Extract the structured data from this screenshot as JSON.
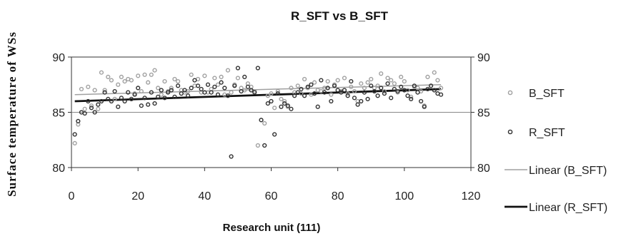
{
  "chart_data": {
    "type": "scatter",
    "title": "R_SFT vs B_SFT",
    "xlabel": "Research unit (111)",
    "ylabel": "Surface temperature of WSs",
    "xlim": [
      0,
      120
    ],
    "ylim": [
      80,
      90
    ],
    "x_ticks": [
      0,
      20,
      40,
      60,
      80,
      100,
      120
    ],
    "y_ticks": [
      80,
      85,
      90
    ],
    "y_ticks_right": [
      80,
      85,
      90
    ],
    "grid": "horizontal",
    "legend": "right",
    "series": [
      {
        "name": "B_SFT",
        "marker": "open-circle",
        "color": "#a0a0a0",
        "x": [
          1,
          2,
          3,
          4,
          5,
          6,
          7,
          8,
          9,
          10,
          11,
          12,
          13,
          14,
          15,
          16,
          17,
          18,
          19,
          20,
          21,
          22,
          23,
          24,
          25,
          26,
          27,
          28,
          29,
          30,
          31,
          32,
          33,
          34,
          35,
          36,
          37,
          38,
          39,
          40,
          41,
          42,
          43,
          44,
          45,
          46,
          47,
          48,
          49,
          50,
          51,
          52,
          53,
          54,
          55,
          56,
          57,
          58,
          59,
          60,
          61,
          62,
          63,
          64,
          65,
          66,
          67,
          68,
          69,
          70,
          71,
          72,
          73,
          74,
          75,
          76,
          77,
          78,
          79,
          80,
          81,
          82,
          83,
          84,
          85,
          86,
          87,
          88,
          89,
          90,
          91,
          92,
          93,
          94,
          95,
          96,
          97,
          98,
          99,
          100,
          101,
          102,
          103,
          104,
          105,
          106,
          107,
          108,
          109,
          110,
          111
        ],
        "y": [
          82.2,
          83.9,
          87.1,
          85.3,
          87.3,
          85.6,
          87.0,
          85.3,
          88.6,
          87.0,
          88.2,
          87.9,
          86.2,
          87.5,
          88.2,
          87.8,
          88.0,
          87.9,
          86.7,
          88.3,
          86.9,
          88.4,
          87.7,
          88.4,
          88.8,
          87.2,
          86.6,
          87.8,
          86.9,
          87.2,
          88.0,
          87.8,
          87.0,
          86.8,
          86.9,
          88.4,
          87.4,
          88.0,
          86.8,
          88.3,
          86.8,
          87.1,
          88.1,
          87.5,
          88.2,
          86.6,
          88.8,
          86.8,
          87.5,
          88.1,
          87.2,
          87.0,
          87.6,
          87.3,
          86.9,
          82.0,
          84.3,
          84.0,
          86.5,
          86.7,
          85.4,
          86.9,
          86.2,
          86.0,
          85.5,
          87.2,
          86.8,
          87.4,
          86.7,
          88.0,
          87.2,
          86.6,
          87.7,
          87.0,
          86.9,
          87.2,
          87.8,
          86.6,
          87.5,
          87.9,
          86.9,
          88.1,
          86.7,
          87.3,
          86.9,
          86.0,
          87.6,
          87.2,
          87.7,
          88.0,
          87.2,
          87.4,
          88.5,
          86.9,
          88.1,
          87.9,
          87.6,
          86.8,
          88.2,
          87.8,
          87.0,
          86.4,
          87.3,
          87.2,
          86.9,
          85.6,
          88.2,
          87.4,
          88.6,
          87.9,
          87.2
        ]
      },
      {
        "name": "R_SFT",
        "marker": "open-circle",
        "color": "#303030",
        "x": [
          1,
          2,
          3,
          4,
          5,
          6,
          7,
          8,
          9,
          10,
          11,
          12,
          13,
          14,
          15,
          16,
          17,
          18,
          19,
          20,
          21,
          22,
          23,
          24,
          25,
          26,
          27,
          28,
          29,
          30,
          31,
          32,
          33,
          34,
          35,
          36,
          37,
          38,
          39,
          40,
          41,
          42,
          43,
          44,
          45,
          46,
          47,
          48,
          49,
          50,
          51,
          52,
          53,
          54,
          55,
          56,
          57,
          58,
          59,
          60,
          61,
          62,
          63,
          64,
          65,
          66,
          67,
          68,
          69,
          70,
          71,
          72,
          73,
          74,
          75,
          76,
          77,
          78,
          79,
          80,
          81,
          82,
          83,
          84,
          85,
          86,
          87,
          88,
          89,
          90,
          91,
          92,
          93,
          94,
          95,
          96,
          97,
          98,
          99,
          100,
          101,
          102,
          103,
          104,
          105,
          106,
          107,
          108,
          109,
          110,
          111
        ],
        "y": [
          83.0,
          84.2,
          85.0,
          84.9,
          86.0,
          85.4,
          85.0,
          85.7,
          86.0,
          86.8,
          86.2,
          86.0,
          86.9,
          85.5,
          86.3,
          86.0,
          86.8,
          86.2,
          86.6,
          87.2,
          85.6,
          86.3,
          85.7,
          86.8,
          85.8,
          86.4,
          87.0,
          86.3,
          86.8,
          87.0,
          86.4,
          87.4,
          86.7,
          87.0,
          86.5,
          87.2,
          87.9,
          87.4,
          87.1,
          86.8,
          87.5,
          86.8,
          87.3,
          86.6,
          87.7,
          87.2,
          86.5,
          81.0,
          87.4,
          89.0,
          86.9,
          88.2,
          87.3,
          87.0,
          86.8,
          89.0,
          84.3,
          82.0,
          85.8,
          86.0,
          83.0,
          86.7,
          85.5,
          85.8,
          85.6,
          85.3,
          86.5,
          86.8,
          87.1,
          86.5,
          87.3,
          87.5,
          86.7,
          85.5,
          87.9,
          86.8,
          87.2,
          86.0,
          87.4,
          87.0,
          86.8,
          87.0,
          86.5,
          87.8,
          86.3,
          85.7,
          86.0,
          86.8,
          86.2,
          87.4,
          86.9,
          86.5,
          87.2,
          86.7,
          87.6,
          86.3,
          87.1,
          86.9,
          87.3,
          87.0,
          86.5,
          86.2,
          87.4,
          86.8,
          86.0,
          85.5,
          87.1,
          87.4,
          87.0,
          86.7,
          86.6
        ]
      }
    ],
    "trendlines": [
      {
        "name": "Linear (B_SFT)",
        "color": "#a0a0a0",
        "width": 1.5,
        "x": [
          1,
          111
        ],
        "y": [
          86.6,
          87.5
        ]
      },
      {
        "name": "Linear (R_SFT)",
        "color": "#111111",
        "width": 2.8,
        "x": [
          1,
          111
        ],
        "y": [
          86.0,
          87.1
        ]
      }
    ]
  }
}
